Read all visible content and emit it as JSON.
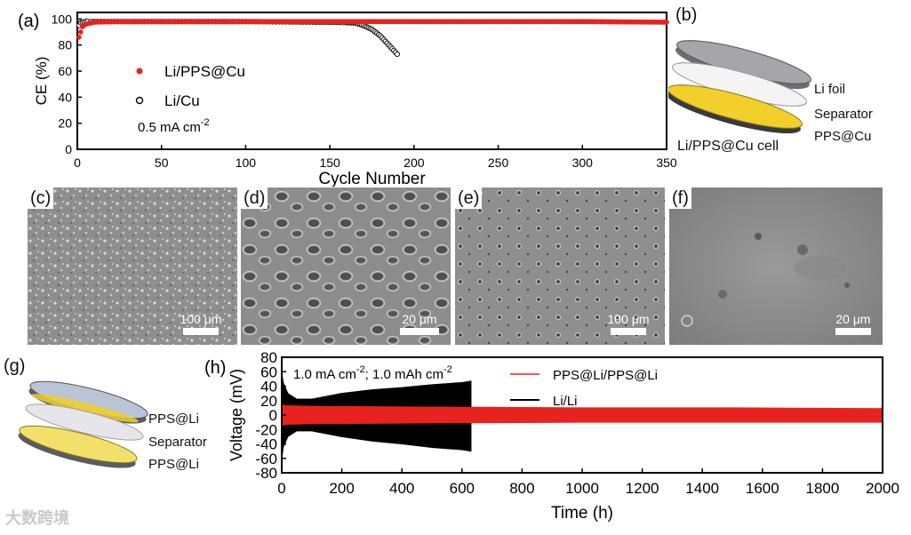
{
  "chart_data": [
    {
      "type": "scatter",
      "panel": "(a)",
      "xlabel": "Cycle Number",
      "ylabel": "CE (%)",
      "xlim": [
        0,
        350
      ],
      "ylim": [
        0,
        105
      ],
      "xticks": [
        0,
        50,
        100,
        150,
        200,
        250,
        300,
        350
      ],
      "yticks": [
        0,
        20,
        40,
        60,
        80,
        100
      ],
      "annotation": "0.5 mA cm",
      "annotation_sup": "-2",
      "legend_position": "middle-left",
      "series": [
        {
          "name": "Li/PPS@Cu",
          "color": "#e8231f",
          "x": [
            1,
            2,
            3,
            5,
            10,
            20,
            50,
            100,
            150,
            200,
            250,
            300,
            350
          ],
          "y": [
            86,
            90,
            94,
            96,
            97.5,
            98,
            98,
            98,
            98,
            98,
            98,
            98,
            97.5
          ]
        },
        {
          "name": "Li/Cu",
          "color": "#111111",
          "x": [
            1,
            2,
            5,
            10,
            50,
            100,
            150,
            165,
            170,
            175,
            180,
            185,
            190
          ],
          "y": [
            95,
            97,
            98,
            98,
            98,
            98,
            97.5,
            97,
            95,
            92,
            87,
            80,
            73
          ]
        }
      ]
    },
    {
      "type": "line",
      "panel": "(h)",
      "xlabel": "Time (h)",
      "ylabel": "Voltage (mV)",
      "xlim": [
        0,
        2000
      ],
      "ylim": [
        -80,
        80
      ],
      "xticks": [
        0,
        200,
        400,
        600,
        800,
        1000,
        1200,
        1400,
        1600,
        1800,
        2000
      ],
      "yticks": [
        -80,
        -60,
        -40,
        -20,
        0,
        20,
        40,
        60,
        80
      ],
      "annotation_parts": [
        "1.0 mA cm",
        "-2",
        "; 1.0 mAh cm",
        "-2"
      ],
      "legend_position": "top-right",
      "series": [
        {
          "name": "PPS@Li/PPS@Li",
          "color": "#e8231f",
          "x": [
            0,
            10,
            100,
            500,
            1000,
            1500,
            2000
          ],
          "y_upper": [
            15,
            13,
            12,
            11,
            10,
            10,
            9
          ],
          "y_lower": [
            -15,
            -13,
            -12,
            -11,
            -10,
            -10,
            -10
          ]
        },
        {
          "name": "Li/Li",
          "color": "#000000",
          "x": [
            0,
            5,
            20,
            50,
            100,
            200,
            300,
            400,
            500,
            600,
            630
          ],
          "y_upper": [
            58,
            45,
            30,
            22,
            22,
            30,
            35,
            38,
            42,
            45,
            47
          ],
          "y_lower": [
            -60,
            -45,
            -30,
            -22,
            -22,
            -30,
            -36,
            -40,
            -45,
            -48,
            -50
          ]
        }
      ]
    }
  ],
  "panel_b": {
    "tag": "(b)",
    "layers": [
      "Li foil",
      "Separator",
      "PPS@Cu"
    ],
    "caption": "Li/PPS@Cu cell"
  },
  "sem_panels": [
    {
      "tag": "(c)",
      "scale": "100 μm"
    },
    {
      "tag": "(d)",
      "scale": "20 μm"
    },
    {
      "tag": "(e)",
      "scale": "100 μm"
    },
    {
      "tag": "(f)",
      "scale": "20 μm"
    }
  ],
  "panel_g": {
    "tag": "(g)",
    "layers": [
      "PPS@Li",
      "Separator",
      "PPS@Li"
    ]
  },
  "watermark": "大数跨境",
  "colors": {
    "red": "#e8231f",
    "black": "#000000",
    "gold": "#f2cf2a",
    "sem_bg": "#8a8a8a"
  }
}
